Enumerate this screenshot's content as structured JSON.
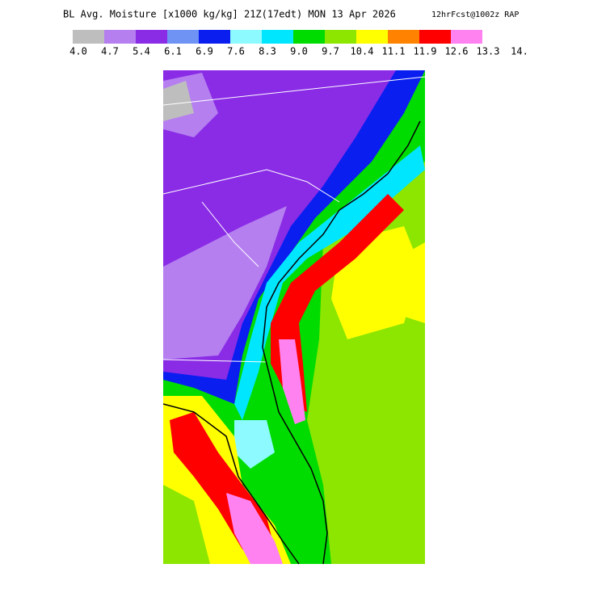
{
  "header": {
    "title": "BL Avg. Moisture [x1000 kg/kg] 21Z(17edt) MON 13 Apr 2026",
    "subtitle": "12hrFcst@1002z RAP"
  },
  "colorbar": {
    "colors": [
      "#bebebe",
      "#b57ff0",
      "#8a2be6",
      "#6f92f5",
      "#0a1ef0",
      "#8cfaff",
      "#00e6ff",
      "#00dc00",
      "#8ce600",
      "#ffff00",
      "#ff8200",
      "#ff0000",
      "#ff82f0"
    ],
    "labels": [
      "4.0",
      "4.7",
      "5.4",
      "6.1",
      "6.9",
      "7.6",
      "8.3",
      "9.0",
      "9.7",
      "10.4",
      "11.1",
      "11.9",
      "12.6",
      "13.3",
      "14."
    ]
  }
}
